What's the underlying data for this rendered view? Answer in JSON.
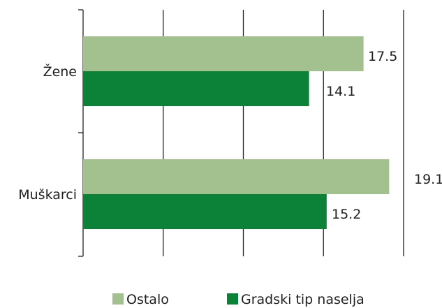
{
  "chart_data": {
    "type": "bar",
    "orientation": "horizontal",
    "categories": [
      "Žene",
      "Muškarci"
    ],
    "series": [
      {
        "name": "Ostalo",
        "values": [
          17.5,
          19.1
        ],
        "color": "#a3c18f"
      },
      {
        "name": "Gradski tip naselja",
        "values": [
          14.1,
          15.2
        ],
        "color": "#0c8238"
      }
    ],
    "xlim": [
      0,
      20
    ],
    "grid": true,
    "legend_position": "bottom"
  }
}
